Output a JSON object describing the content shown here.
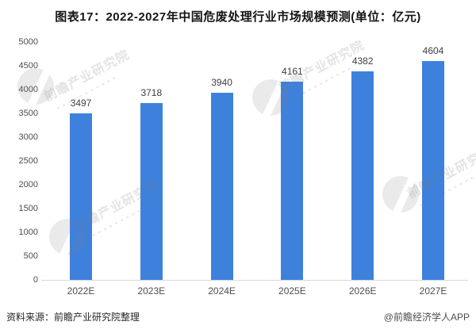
{
  "title": "图表17：2022-2027年中国危废处理行业市场规模预测(单位：亿元)",
  "chart_data": {
    "type": "bar",
    "categories": [
      "2022E",
      "2023E",
      "2024E",
      "2025E",
      "2026E",
      "2027E"
    ],
    "values": [
      3497,
      3718,
      3940,
      4161,
      4382,
      4604
    ],
    "title": "图表17：2022-2027年中国危废处理行业市场规模预测(单位：亿元)",
    "xlabel": "",
    "ylabel": "",
    "ylim": [
      0,
      5000
    ],
    "ytick_step": 500,
    "grid": false,
    "legend": "none",
    "bar_color": "#3E81DD",
    "value_labels_shown": true
  },
  "footer": {
    "source": "资料来源：前瞻产业研究院整理",
    "credit": "@前瞻经济学人APP"
  },
  "watermark": {
    "text": "前瞻产业研究院"
  },
  "colors": {
    "bar": "#3E81DD",
    "axis_line": "#d9d9d9",
    "label_text": "#4d4d4d",
    "title_text": "#151515"
  }
}
